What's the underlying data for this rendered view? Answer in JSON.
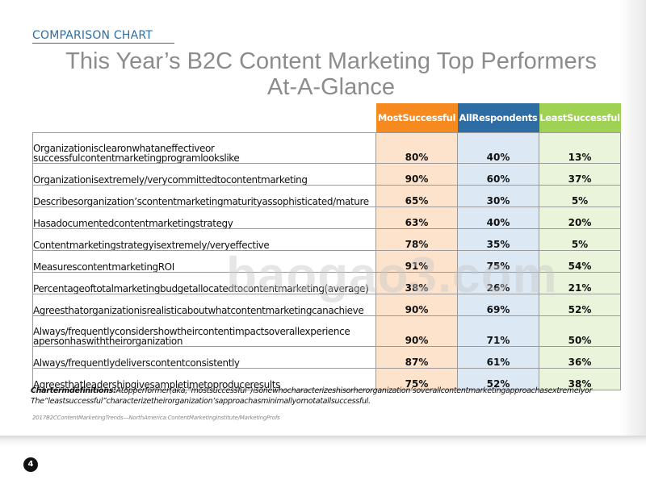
{
  "header": {
    "kicker": "COMPARISON CHART",
    "title_line1": "This Year’s B2C Content Marketing Top Performers",
    "title_line2": "At-A-Glance"
  },
  "columns": [
    {
      "label": "MostSuccessful",
      "color": "#f68a1e"
    },
    {
      "label": "AllRespondents",
      "color": "#2e6da4"
    },
    {
      "label": "LeastSuccessful",
      "color": "#9fd153"
    }
  ],
  "rows": [
    {
      "label_line1": "Organizationisclearonwhataneffectiveor",
      "label_line2": "successfulcontentmarketingprogramlookslike",
      "values": [
        "80%",
        "40%",
        "13%"
      ]
    },
    {
      "label_line1": "Organizationisextremely/verycommittedtocontentmarketing",
      "values": [
        "90%",
        "60%",
        "37%"
      ]
    },
    {
      "label_line1": "Describesorganization’scontentmarketingmaturityassophisticated/mature",
      "values": [
        "65%",
        "30%",
        "5%"
      ]
    },
    {
      "label_line1": "Hasadocumentedcontentmarketingstrategy",
      "values": [
        "63%",
        "40%",
        "20%"
      ]
    },
    {
      "label_line1": "Contentmarketingstrategyisextremely/veryeffective",
      "values": [
        "78%",
        "35%",
        "5%"
      ]
    },
    {
      "label_line1": "MeasurescontentmarketingROI",
      "values": [
        "91%",
        "75%",
        "54%"
      ]
    },
    {
      "label_line1": "Percentageoftotalmarketingbudgetallocatedtocontentmarketing(average)",
      "values": [
        "38%",
        "26%",
        "21%"
      ]
    },
    {
      "label_line1": "Agreesthatorganizationisrealisticaboutwhatcontentmarketingcanachieve",
      "values": [
        "90%",
        "69%",
        "52%"
      ]
    },
    {
      "label_line1": "Always/frequentlyconsidershowtheircontentimpactsoverallexperience",
      "label_line2": "apersonhaswiththeirorganization",
      "values": [
        "90%",
        "71%",
        "50%"
      ]
    },
    {
      "label_line1": "Always/frequentlydeliverscontentconsistently",
      "values": [
        "87%",
        "61%",
        "36%"
      ]
    },
    {
      "label_line1": "Agreesthatleadershipgivesampletimetoproduceresults",
      "values": [
        "75%",
        "52%",
        "38%"
      ]
    }
  ],
  "chart_data": {
    "type": "table",
    "title": "This Year’s B2C Content Marketing Top Performers At-A-Glance",
    "columns": [
      "MostSuccessful",
      "AllRespondents",
      "LeastSuccessful"
    ],
    "rows": [
      "Organizationisclearonwhataneffectiveor successfulcontentmarketingprogramlookslike",
      "Organizationisextremely/verycommittedtocontentmarketing",
      "Describesorganization’scontentmarketingmaturityassophisticated/mature",
      "Hasadocumentedcontentmarketingstrategy",
      "Contentmarketingstrategyisextremely/veryeffective",
      "MeasurescontentmarketingROI",
      "Percentageoftotalmarketingbudgetallocatedtocontentmarketing(average)",
      "Agreesthatorganizationisrealisticaboutwhatcontentmarketingcanachieve",
      "Always/frequentlyconsidershowtheircontentimpactsoverallexperience apersonhaswiththeirorganization",
      "Always/frequentlydeliverscontentconsistently",
      "Agreesthatleadershipgivesampletimetoproduceresults"
    ],
    "series": [
      {
        "name": "MostSuccessful",
        "values": [
          80,
          90,
          65,
          63,
          78,
          91,
          38,
          90,
          90,
          87,
          75
        ]
      },
      {
        "name": "AllRespondents",
        "values": [
          40,
          60,
          30,
          40,
          35,
          75,
          26,
          69,
          71,
          61,
          52
        ]
      },
      {
        "name": "LeastSuccessful",
        "values": [
          13,
          37,
          5,
          20,
          5,
          54,
          21,
          52,
          50,
          36,
          38
        ]
      }
    ],
    "unit": "%"
  },
  "footer": {
    "def_label": "Chartermdefinitions:",
    "def_line1": "Atopperformer(aka,“mostsuccessful”)isonewhocharacterizeshisorherorganization’soverallcontentmarketingapproachasextremelyor",
    "def_line2": "The“leastsuccessful”characterizetheirorganization’sapproachasminimallyornotatallsuccessful.",
    "source": "2017B2CContentMarketingTrends—NorthAmerica:ContentMarketingInstitute/MarketingProfs",
    "page_number": "4"
  },
  "watermark": "baogao3.com"
}
